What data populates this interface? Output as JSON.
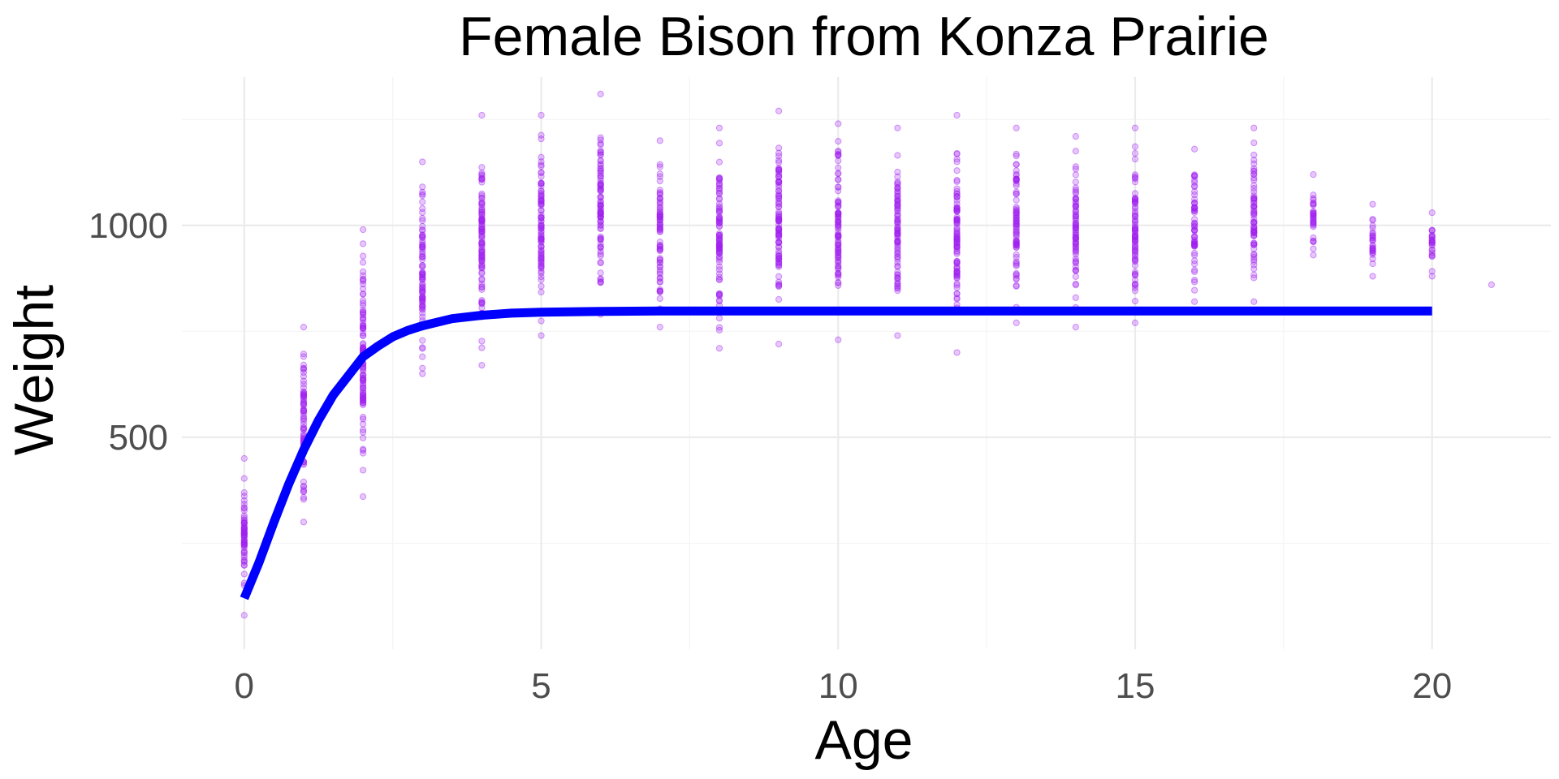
{
  "chart_data": {
    "type": "scatter",
    "title": "Female Bison from Konza Prairie",
    "xlabel": "Age",
    "ylabel": "Weight",
    "xlim": [
      -1.05,
      22
    ],
    "ylim": [
      0,
      1350
    ],
    "x_ticks": [
      0,
      5,
      10,
      15,
      20
    ],
    "y_ticks": [
      500,
      1000
    ],
    "x_tick_labels": [
      "0",
      "5",
      "10",
      "15",
      "20"
    ],
    "y_tick_labels": [
      "500",
      "1000"
    ],
    "grid": true,
    "legend": "none",
    "series": [
      {
        "type": "scatter",
        "color": "#a020f0",
        "opacity": 0.25,
        "ranges": [
          {
            "age": 0,
            "min": 80,
            "max": 450
          },
          {
            "age": 1,
            "min": 300,
            "max": 760
          },
          {
            "age": 2,
            "min": 360,
            "max": 990
          },
          {
            "age": 3,
            "min": 650,
            "max": 1150
          },
          {
            "age": 4,
            "min": 670,
            "max": 1260
          },
          {
            "age": 5,
            "min": 740,
            "max": 1260
          },
          {
            "age": 6,
            "min": 790,
            "max": 1310
          },
          {
            "age": 7,
            "min": 760,
            "max": 1200
          },
          {
            "age": 8,
            "min": 710,
            "max": 1230
          },
          {
            "age": 9,
            "min": 720,
            "max": 1270
          },
          {
            "age": 10,
            "min": 730,
            "max": 1240
          },
          {
            "age": 11,
            "min": 740,
            "max": 1230
          },
          {
            "age": 12,
            "min": 700,
            "max": 1260
          },
          {
            "age": 13,
            "min": 770,
            "max": 1230
          },
          {
            "age": 14,
            "min": 760,
            "max": 1210
          },
          {
            "age": 15,
            "min": 770,
            "max": 1230
          },
          {
            "age": 16,
            "min": 820,
            "max": 1180
          },
          {
            "age": 17,
            "min": 820,
            "max": 1230
          },
          {
            "age": 18,
            "min": 930,
            "max": 1120
          },
          {
            "age": 19,
            "min": 880,
            "max": 1050
          },
          {
            "age": 20,
            "min": 880,
            "max": 1030
          },
          {
            "age": 21,
            "min": 860,
            "max": 860
          }
        ]
      },
      {
        "type": "line",
        "color": "#0000ff",
        "x": [
          0,
          0.25,
          0.5,
          0.75,
          1,
          1.25,
          1.5,
          1.75,
          2,
          2.25,
          2.5,
          2.75,
          3,
          3.5,
          4,
          4.5,
          5,
          6,
          7,
          8,
          10,
          12,
          15,
          18,
          20
        ],
        "y": [
          120,
          205,
          300,
          390,
          470,
          540,
          600,
          645,
          690,
          715,
          737,
          752,
          763,
          780,
          788,
          793,
          795,
          797,
          798,
          798,
          798,
          798,
          798,
          798,
          798
        ]
      }
    ]
  }
}
